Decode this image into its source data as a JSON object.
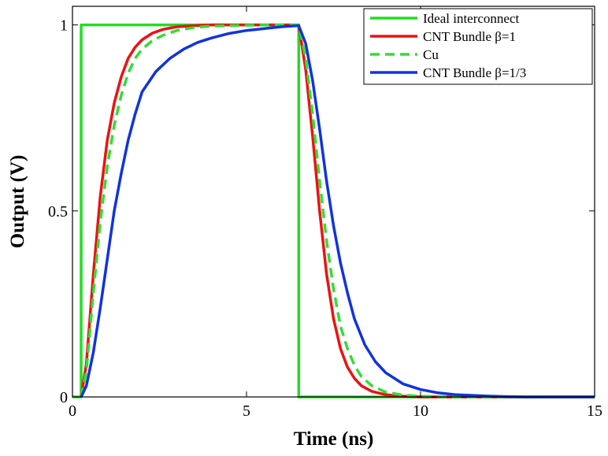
{
  "chart_data": {
    "type": "line",
    "title": "",
    "xlabel": "Time (ns)",
    "ylabel": "Output (V)",
    "xlim": [
      0,
      15
    ],
    "ylim": [
      0,
      1.05
    ],
    "xticks": [
      0,
      5,
      10,
      15
    ],
    "xtick_labels": [
      "0",
      "5",
      "10",
      "15"
    ],
    "yticks": [
      0,
      0.5,
      1
    ],
    "ytick_labels": [
      "0",
      "0.5",
      "1"
    ],
    "grid": false,
    "legend_position": "top-right",
    "series": [
      {
        "name": "Ideal interconnect",
        "color": "#22dd22",
        "dash": "solid",
        "x": [
          0,
          0.25,
          0.25,
          6.5,
          6.5,
          15
        ],
        "y": [
          0,
          0,
          1,
          1,
          0,
          0
        ]
      },
      {
        "name": "CNT Bundle β=1",
        "color": "#ee1111",
        "dash": "solid",
        "x": [
          0.25,
          0.4,
          0.6,
          0.8,
          1.0,
          1.2,
          1.4,
          1.6,
          1.8,
          2.0,
          2.3,
          2.6,
          3.0,
          3.5,
          4.0,
          5.0,
          6.0,
          6.5,
          6.7,
          6.9,
          7.1,
          7.3,
          7.5,
          7.7,
          7.9,
          8.1,
          8.3,
          8.6,
          9.0,
          9.5,
          10.0,
          11.0,
          12.0,
          15.0
        ],
        "y": [
          0,
          0.09,
          0.33,
          0.54,
          0.69,
          0.79,
          0.86,
          0.91,
          0.94,
          0.96,
          0.978,
          0.988,
          0.995,
          0.998,
          1.0,
          1.0,
          1.0,
          1.0,
          0.88,
          0.7,
          0.5,
          0.33,
          0.21,
          0.13,
          0.08,
          0.05,
          0.03,
          0.015,
          0.006,
          0.002,
          0.0,
          0.0,
          0.0,
          0.0
        ]
      },
      {
        "name": "Cu",
        "color": "#33dd33",
        "dash": "dashed",
        "x": [
          0.25,
          0.4,
          0.6,
          0.8,
          1.0,
          1.2,
          1.4,
          1.6,
          1.8,
          2.0,
          2.3,
          2.6,
          3.0,
          3.5,
          4.0,
          5.0,
          6.0,
          6.5,
          6.7,
          6.9,
          7.1,
          7.3,
          7.5,
          7.7,
          7.9,
          8.1,
          8.3,
          8.6,
          9.0,
          9.5,
          10.0,
          11.0,
          12.0,
          15.0
        ],
        "y": [
          0,
          0.07,
          0.28,
          0.47,
          0.62,
          0.73,
          0.81,
          0.87,
          0.91,
          0.935,
          0.958,
          0.972,
          0.985,
          0.993,
          0.997,
          0.999,
          1.0,
          1.0,
          0.91,
          0.76,
          0.58,
          0.42,
          0.29,
          0.19,
          0.13,
          0.085,
          0.055,
          0.03,
          0.013,
          0.005,
          0.002,
          0.0,
          0.0,
          0.0
        ]
      },
      {
        "name": "CNT Bundle β=1/3",
        "color": "#1133dd",
        "dash": "solid",
        "x": [
          0.25,
          0.4,
          0.6,
          0.8,
          1.0,
          1.2,
          1.4,
          1.6,
          1.8,
          2.0,
          2.4,
          2.8,
          3.2,
          3.6,
          4.0,
          4.5,
          5.0,
          5.5,
          6.0,
          6.5,
          6.7,
          6.9,
          7.1,
          7.3,
          7.5,
          7.7,
          7.9,
          8.1,
          8.4,
          8.7,
          9.0,
          9.5,
          10.0,
          10.5,
          11.0,
          12.0,
          13.0,
          15.0
        ],
        "y": [
          0,
          0.03,
          0.12,
          0.24,
          0.37,
          0.5,
          0.6,
          0.69,
          0.76,
          0.82,
          0.875,
          0.91,
          0.935,
          0.953,
          0.965,
          0.977,
          0.985,
          0.99,
          0.995,
          0.998,
          0.95,
          0.85,
          0.72,
          0.58,
          0.46,
          0.36,
          0.28,
          0.21,
          0.14,
          0.095,
          0.065,
          0.035,
          0.02,
          0.011,
          0.006,
          0.002,
          0.0,
          0.0
        ]
      }
    ]
  }
}
